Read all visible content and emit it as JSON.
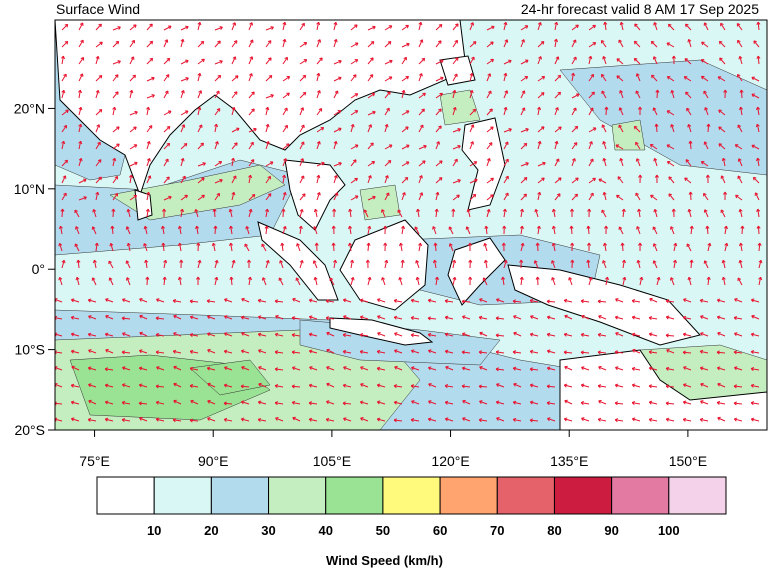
{
  "header": {
    "title": "Surface Wind",
    "valid": "24-hr forecast valid 8 AM 17 Sep 2025"
  },
  "map": {
    "lon_range": [
      70,
      160
    ],
    "lat_range": [
      -20,
      31
    ],
    "x_ticks": [
      {
        "value": 75,
        "label": "75°E"
      },
      {
        "value": 90,
        "label": "90°E"
      },
      {
        "value": 105,
        "label": "105°E"
      },
      {
        "value": 120,
        "label": "120°E"
      },
      {
        "value": 135,
        "label": "135°E"
      },
      {
        "value": 150,
        "label": "150°E"
      }
    ],
    "y_ticks": [
      {
        "value": 20,
        "label": "20°N"
      },
      {
        "value": 10,
        "label": "10°N"
      },
      {
        "value": 0,
        "label": "0°"
      },
      {
        "value": -10,
        "label": "10°S"
      },
      {
        "value": -20,
        "label": "20°S"
      }
    ],
    "vector_color": "#e8132f",
    "coast_color": "#000000"
  },
  "legend": {
    "title": "Wind Speed (km/h)",
    "bins": [
      {
        "color": "#ffffff"
      },
      {
        "color": "#d9f7f4"
      },
      {
        "color": "#b3dbee"
      },
      {
        "color": "#c4edc0"
      },
      {
        "color": "#9ae394"
      },
      {
        "color": "#fffa7c"
      },
      {
        "color": "#ffa36f"
      },
      {
        "color": "#e5626a"
      },
      {
        "color": "#cc1c40"
      },
      {
        "color": "#e27aa2"
      },
      {
        "color": "#f3d2ea"
      }
    ],
    "labels": [
      "10",
      "20",
      "30",
      "40",
      "50",
      "60",
      "70",
      "80",
      "90",
      "100"
    ]
  }
}
